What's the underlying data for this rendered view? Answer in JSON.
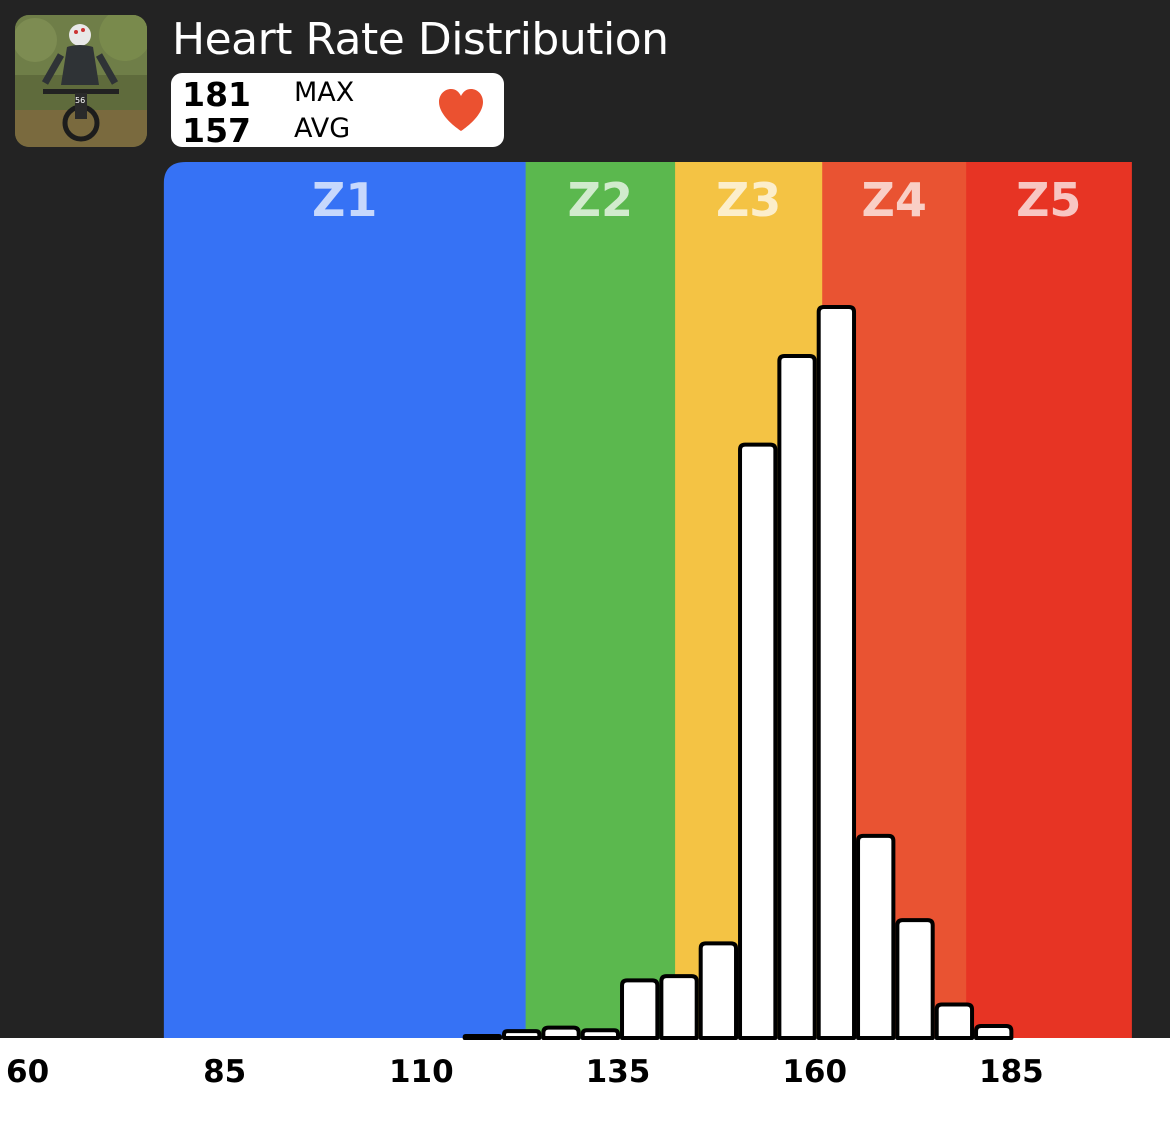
{
  "header": {
    "title": "Heart Rate Distribution"
  },
  "stats": {
    "max_value": "181",
    "max_label": "MAX",
    "avg_value": "157",
    "avg_label": "AVG"
  },
  "icons": {
    "avatar": "cyclist-photo",
    "heart": "heart-icon"
  },
  "chart_data": {
    "type": "bar",
    "title": "Heart Rate Distribution",
    "xlabel": "",
    "ylabel": "",
    "xlim": [
      60,
      200
    ],
    "ylim": [
      0,
      100
    ],
    "x_ticks": [
      60,
      85,
      110,
      135,
      160,
      185
    ],
    "bin_width": 5,
    "bins": [
      {
        "start": 115,
        "value": 0.2
      },
      {
        "start": 120,
        "value": 0.8
      },
      {
        "start": 125,
        "value": 1.2
      },
      {
        "start": 130,
        "value": 0.9
      },
      {
        "start": 135,
        "value": 6.7
      },
      {
        "start": 140,
        "value": 7.2
      },
      {
        "start": 145,
        "value": 11.0
      },
      {
        "start": 150,
        "value": 69.0
      },
      {
        "start": 155,
        "value": 79.3
      },
      {
        "start": 160,
        "value": 85.0
      },
      {
        "start": 165,
        "value": 23.5
      },
      {
        "start": 170,
        "value": 13.7
      },
      {
        "start": 175,
        "value": 3.9
      },
      {
        "start": 180,
        "value": 1.4
      }
    ],
    "zones": [
      {
        "label": "Z1",
        "from": 77,
        "to": 123,
        "color": "#3672F5"
      },
      {
        "label": "Z2",
        "from": 123,
        "to": 142,
        "color": "#5BB84E"
      },
      {
        "label": "Z3",
        "from": 142,
        "to": 160.7,
        "color": "#F4C344"
      },
      {
        "label": "Z4",
        "from": 160.7,
        "to": 179,
        "color": "#E95332"
      },
      {
        "label": "Z5",
        "from": 179,
        "to": 200,
        "color": "#E73424"
      }
    ],
    "grid": false,
    "legend": "none"
  }
}
